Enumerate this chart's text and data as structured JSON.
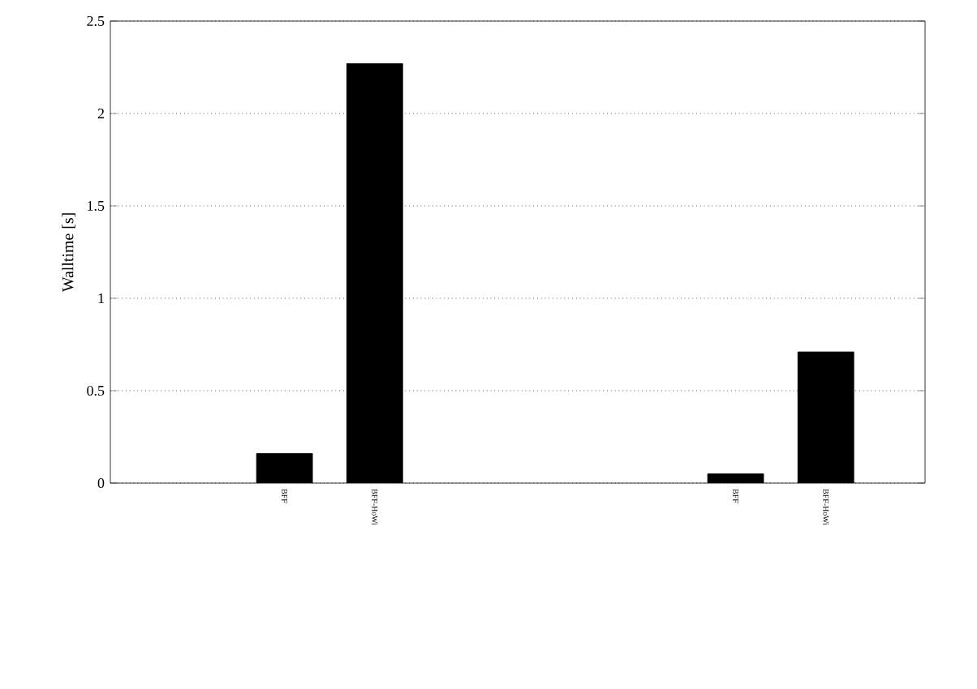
{
  "chart_data": {
    "type": "bar",
    "ylabel": "Walltime [s]",
    "categories": [
      null,
      "BFF",
      "BFF-HoWi",
      null,
      null,
      null,
      "BFF",
      "BFF-HoWi"
    ],
    "values": [
      null,
      0.16,
      2.27,
      null,
      null,
      null,
      0.05,
      0.71
    ],
    "color": "#000000",
    "ylim": [
      0,
      2.5
    ],
    "yticks": [
      0,
      0.5,
      1,
      1.5,
      2,
      2.5
    ],
    "grid": "y"
  }
}
